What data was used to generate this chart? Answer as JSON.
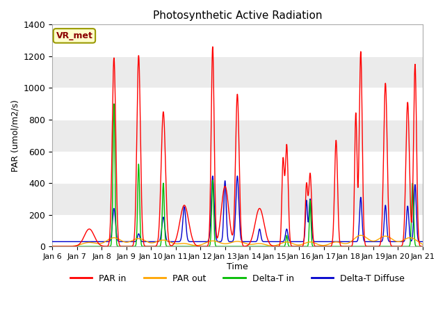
{
  "title": "Photosynthetic Active Radiation",
  "xlabel": "Time",
  "ylabel": "PAR (umol/m2/s)",
  "ylim": [
    0,
    1400
  ],
  "legend_labels": [
    "PAR in",
    "PAR out",
    "Delta-T in",
    "Delta-T Diffuse"
  ],
  "legend_colors": [
    "#ff0000",
    "#ffa500",
    "#00bb00",
    "#0000cc"
  ],
  "site_label": "VR_met",
  "plot_bg": "#ebebeb",
  "fig_bg": "#ffffff",
  "x_tick_labels": [
    "Jan 6",
    "Jan 7",
    "Jan 8",
    "Jan 9",
    "Jan 10",
    "Jan 11",
    "Jan 12",
    "Jan 13",
    "Jan 14",
    "Jan 15",
    "Jan 16",
    "Jan 17",
    "Jan 18",
    "Jan 19",
    "Jan 20",
    "Jan 21"
  ],
  "gridcolor": "#ffffff",
  "linewidth": 1.0,
  "n_days": 15,
  "n_per_day": 144
}
